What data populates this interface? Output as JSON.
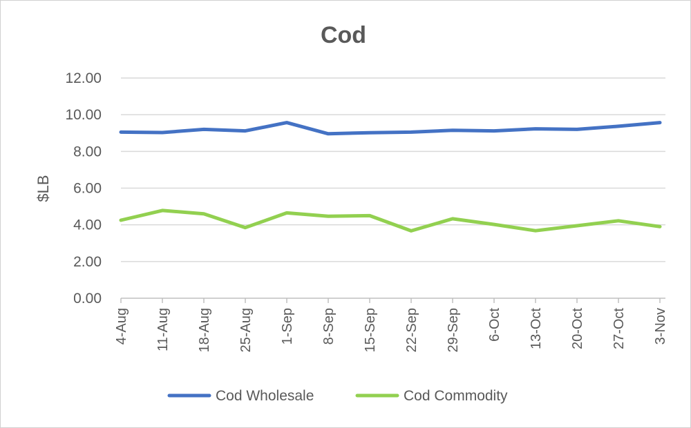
{
  "chart_data": {
    "type": "line",
    "title": "Cod",
    "ylabel": "$LB",
    "xlabel": "",
    "ylim": [
      0,
      12
    ],
    "ytick_labels": [
      "0.00",
      "2.00",
      "4.00",
      "6.00",
      "8.00",
      "10.00",
      "12.00"
    ],
    "grid": true,
    "legend_position": "bottom",
    "categories": [
      "4-Aug",
      "11-Aug",
      "18-Aug",
      "25-Aug",
      "1-Sep",
      "8-Sep",
      "15-Sep",
      "22-Sep",
      "29-Sep",
      "6-Oct",
      "13-Oct",
      "20-Oct",
      "27-Oct",
      "3-Nov"
    ],
    "series": [
      {
        "name": "Cod Wholesale",
        "color": "#4472c4",
        "values": [
          9.05,
          9.03,
          9.2,
          9.12,
          9.57,
          8.96,
          9.02,
          9.05,
          9.15,
          9.12,
          9.23,
          9.2,
          9.37,
          9.57
        ]
      },
      {
        "name": "Cod Commodity",
        "color": "#92d050",
        "values": [
          4.25,
          4.78,
          4.6,
          3.85,
          4.65,
          4.47,
          4.5,
          3.67,
          4.33,
          4.02,
          3.68,
          3.95,
          4.22,
          3.9
        ]
      }
    ]
  }
}
